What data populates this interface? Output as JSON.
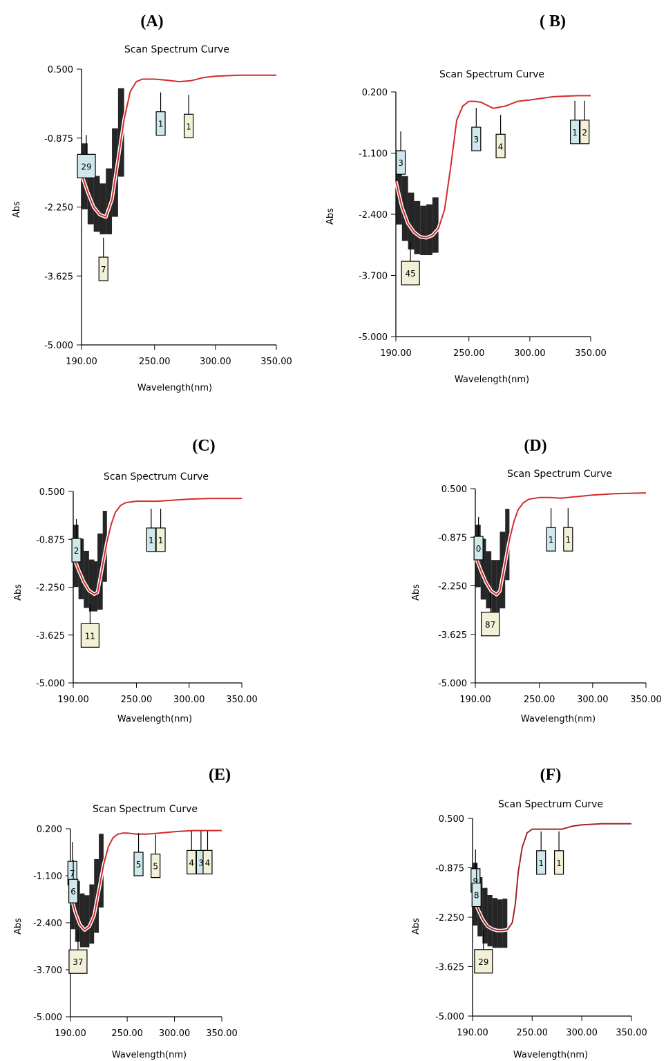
{
  "chart_data": [
    {
      "panel": "(A)",
      "title": "Scan Spectrum Curve",
      "type": "line",
      "xlabel": "Wavelength(nm)",
      "ylabel": "Abs",
      "xlim": [
        190,
        350
      ],
      "ylim": [
        -5.0,
        0.5
      ],
      "xticks": [
        "190.00",
        "250.00",
        "300.00",
        "350.00"
      ],
      "yticks": [
        "0.500",
        "-0.875",
        "-2.250",
        "-3.625",
        "-5.000"
      ],
      "line_color": "#d42a2a",
      "x": [
        190,
        195,
        200,
        205,
        210,
        215,
        220,
        225,
        230,
        235,
        240,
        245,
        250,
        260,
        270,
        280,
        290,
        300,
        320,
        350
      ],
      "y": [
        -1.6,
        -1.95,
        -2.25,
        -2.4,
        -2.45,
        -2.1,
        -1.3,
        -0.5,
        0.05,
        0.25,
        0.3,
        0.3,
        0.3,
        0.28,
        0.25,
        0.27,
        0.33,
        0.36,
        0.38,
        0.38
      ],
      "markers": [
        {
          "label": "1",
          "x": 255,
          "y": -0.35,
          "color": "#cfe8ec"
        },
        {
          "label": "1",
          "x": 278,
          "y": -0.4,
          "color": "#f3f0d8"
        },
        {
          "label": "29",
          "x": 194,
          "y": -1.2,
          "color": "#cfe8ec"
        },
        {
          "label": "7",
          "x": 208,
          "y": -3.25,
          "color": "#f3f0d8"
        }
      ]
    },
    {
      "panel": "( B)",
      "title": "Scan Spectrum Curve",
      "type": "line",
      "xlabel": "Wavelength(nm)",
      "ylabel": "Abs",
      "xlim": [
        190,
        350
      ],
      "ylim": [
        -5.0,
        0.2
      ],
      "xticks": [
        "190.00",
        "250.00",
        "300.00",
        "350.00"
      ],
      "yticks": [
        "0.200",
        "-1.100",
        "-2.400",
        "-3.700",
        "-5.000"
      ],
      "line_color": "#d42a2a",
      "x": [
        190,
        195,
        200,
        205,
        210,
        215,
        220,
        225,
        230,
        235,
        240,
        245,
        250,
        255,
        260,
        270,
        280,
        290,
        300,
        320,
        340,
        350
      ],
      "y": [
        -1.7,
        -2.25,
        -2.6,
        -2.78,
        -2.88,
        -2.9,
        -2.85,
        -2.7,
        -2.3,
        -1.4,
        -0.4,
        -0.1,
        0.0,
        0.0,
        -0.02,
        -0.15,
        -0.1,
        0.0,
        0.03,
        0.1,
        0.12,
        0.12
      ],
      "markers": [
        {
          "label": "3",
          "x": 256,
          "y": -0.55,
          "color": "#cfe8ec"
        },
        {
          "label": "4",
          "x": 276,
          "y": -0.7,
          "color": "#f3f0d8"
        },
        {
          "label": "1",
          "x": 337,
          "y": -0.4,
          "color": "#cfe8ec"
        },
        {
          "label": "2",
          "x": 345,
          "y": -0.4,
          "color": "#f3f0d8"
        },
        {
          "label": "3",
          "x": 194,
          "y": -1.05,
          "color": "#cfe8ec"
        },
        {
          "label": "45",
          "x": 202,
          "y": -3.4,
          "color": "#f3f0d8"
        }
      ]
    },
    {
      "panel": "(C)",
      "title": "Scan Spectrum Curve",
      "type": "line",
      "xlabel": "Wavelength(nm)",
      "ylabel": "Abs",
      "xlim": [
        190,
        350
      ],
      "ylim": [
        -5.0,
        0.5
      ],
      "xticks": [
        "190.00",
        "250.00",
        "300.00",
        "350.00"
      ],
      "yticks": [
        "0.500",
        "-0.875",
        "-2.250",
        "-3.625",
        "-5.000"
      ],
      "line_color": "#d42a2a",
      "x": [
        190,
        195,
        200,
        205,
        210,
        213,
        218,
        222,
        226,
        230,
        235,
        240,
        250,
        260,
        270,
        280,
        300,
        320,
        350
      ],
      "y": [
        -1.35,
        -1.75,
        -2.1,
        -2.35,
        -2.45,
        -2.4,
        -1.6,
        -0.95,
        -0.45,
        -0.1,
        0.1,
        0.18,
        0.22,
        0.22,
        0.22,
        0.24,
        0.28,
        0.3,
        0.3
      ],
      "markers": [
        {
          "label": "1",
          "x": 264,
          "y": -0.55,
          "color": "#cfe8ec"
        },
        {
          "label": "1",
          "x": 273,
          "y": -0.55,
          "color": "#f3f0d8"
        },
        {
          "label": "2",
          "x": 193,
          "y": -0.85,
          "color": "#cfe8ec"
        },
        {
          "label": "11",
          "x": 206,
          "y": -3.3,
          "color": "#f3f0d8"
        }
      ]
    },
    {
      "panel": "(D)",
      "title": "Scan Spectrum Curve",
      "type": "line",
      "xlabel": "Wavelength(nm)",
      "ylabel": "Abs",
      "xlim": [
        190,
        350
      ],
      "ylim": [
        -5.0,
        0.5
      ],
      "xticks": [
        "190.00",
        "250.00",
        "300.00",
        "350.00"
      ],
      "yticks": [
        "0.500",
        "-0.875",
        "-2.250",
        "-3.625",
        "-5.000"
      ],
      "line_color": "#d42a2a",
      "x": [
        190,
        195,
        200,
        205,
        210,
        213,
        218,
        222,
        226,
        230,
        235,
        240,
        250,
        260,
        270,
        280,
        300,
        320,
        350
      ],
      "y": [
        -1.4,
        -1.8,
        -2.15,
        -2.4,
        -2.5,
        -2.4,
        -1.6,
        -0.95,
        -0.45,
        -0.1,
        0.1,
        0.2,
        0.25,
        0.25,
        0.23,
        0.26,
        0.32,
        0.36,
        0.38
      ],
      "markers": [
        {
          "label": "1",
          "x": 261,
          "y": -0.6,
          "color": "#cfe8ec"
        },
        {
          "label": "1",
          "x": 277,
          "y": -0.6,
          "color": "#f3f0d8"
        },
        {
          "label": "0",
          "x": 193,
          "y": -0.85,
          "color": "#cfe8ec"
        },
        {
          "label": "87",
          "x": 204,
          "y": -3.0,
          "color": "#f3f0d8"
        }
      ]
    },
    {
      "panel": "(E)",
      "title": "Scan Spectrum Curve",
      "type": "line",
      "xlabel": "Wavelength(nm)",
      "ylabel": "Abs",
      "xlim": [
        190,
        350
      ],
      "ylim": [
        -5.0,
        0.2
      ],
      "xticks": [
        "190.00",
        "250.00",
        "300.00",
        "350.00"
      ],
      "yticks": [
        "0.200",
        "-1.100",
        "-2.400",
        "-3.700",
        "-5.000"
      ],
      "line_color": "#d42a2a",
      "x": [
        190,
        195,
        200,
        205,
        210,
        215,
        220,
        225,
        230,
        235,
        240,
        245,
        250,
        260,
        270,
        280,
        300,
        320,
        350
      ],
      "y": [
        -1.6,
        -2.1,
        -2.45,
        -2.6,
        -2.5,
        -2.2,
        -1.5,
        -0.8,
        -0.3,
        -0.05,
        0.05,
        0.08,
        0.08,
        0.05,
        0.05,
        0.07,
        0.12,
        0.15,
        0.15
      ],
      "markers": [
        {
          "label": "5",
          "x": 262,
          "y": -0.45,
          "color": "#cfe8ec"
        },
        {
          "label": "5",
          "x": 280,
          "y": -0.5,
          "color": "#f3f0d8"
        },
        {
          "label": "4",
          "x": 318,
          "y": -0.4,
          "color": "#f3f0d8"
        },
        {
          "label": "3",
          "x": 328,
          "y": -0.4,
          "color": "#cfe8ec"
        },
        {
          "label": "4",
          "x": 335,
          "y": -0.4,
          "color": "#f3f0d8"
        },
        {
          "label": "7",
          "x": 192,
          "y": -0.7,
          "color": "#cfe8ec"
        },
        {
          "label": "6",
          "x": 193,
          "y": -1.2,
          "color": "#cfe8ec"
        },
        {
          "label": "37",
          "x": 198,
          "y": -3.15,
          "color": "#f3f0d8"
        }
      ]
    },
    {
      "panel": "(F)",
      "title": "Scan Spectrum Curve",
      "type": "line",
      "xlabel": "Wavelength(nm)",
      "ylabel": "Abs",
      "xlim": [
        190,
        350
      ],
      "ylim": [
        -5.0,
        0.5
      ],
      "xticks": [
        "190.00",
        "250.00",
        "300.00",
        "350.00"
      ],
      "yticks": [
        "0.500",
        "-0.875",
        "-2.250",
        "-3.625",
        "-5.000"
      ],
      "line_color": "#9e2626",
      "x": [
        190,
        195,
        200,
        205,
        210,
        215,
        220,
        225,
        230,
        233,
        236,
        240,
        245,
        250,
        260,
        270,
        280,
        290,
        300,
        320,
        350
      ],
      "y": [
        -1.6,
        -2.0,
        -2.3,
        -2.5,
        -2.58,
        -2.62,
        -2.62,
        -2.6,
        -2.4,
        -1.9,
        -1.0,
        -0.3,
        0.1,
        0.2,
        0.2,
        0.2,
        0.2,
        0.28,
        0.32,
        0.35,
        0.35
      ],
      "markers": [
        {
          "label": "1",
          "x": 259,
          "y": -0.4,
          "color": "#cfe8ec"
        },
        {
          "label": "1",
          "x": 277,
          "y": -0.4,
          "color": "#f3f0d8"
        },
        {
          "label": "9",
          "x": 193,
          "y": -0.9,
          "color": "#cfe8ec"
        },
        {
          "label": "8",
          "x": 194,
          "y": -1.3,
          "color": "#cfe8ec"
        },
        {
          "label": "29",
          "x": 201,
          "y": -3.15,
          "color": "#f3f0d8"
        }
      ]
    }
  ]
}
